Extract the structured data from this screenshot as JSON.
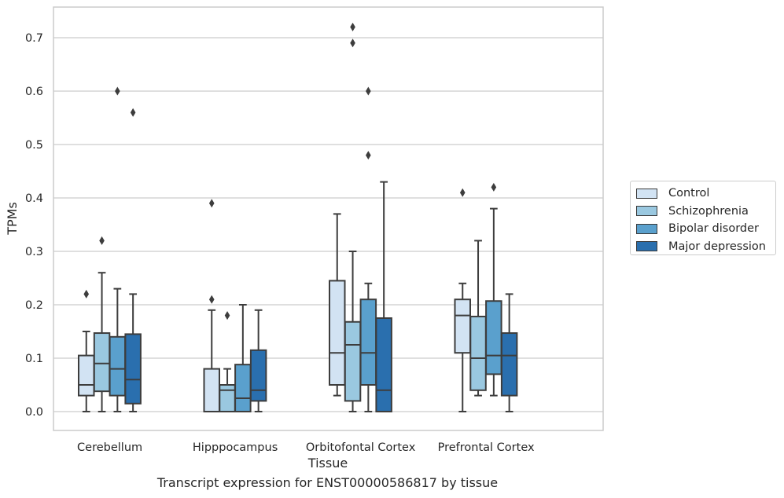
{
  "chart_data": {
    "type": "box",
    "xlabel": "Tissue",
    "ylabel": "TPMs",
    "ylim": [
      -0.035,
      0.76
    ],
    "yticks": [
      0.0,
      0.1,
      0.2,
      0.3,
      0.4,
      0.5,
      0.6,
      0.7
    ],
    "ytick_labels": [
      "0.0",
      "0.1",
      "0.2",
      "0.3",
      "0.4",
      "0.5",
      "0.6",
      "0.7"
    ],
    "grid": "horizontal",
    "legend_position": "right",
    "categories": [
      "Cerebellum",
      "Hipppocampus",
      "Orbitofontal Cortex",
      "Prefrontal Cortex"
    ],
    "series": [
      {
        "name": "Control",
        "color": "#d2e3f3",
        "boxes": [
          {
            "whisker_low": 0.0,
            "q1": 0.03,
            "median": 0.05,
            "q3": 0.105,
            "whisker_high": 0.15,
            "outliers": [
              0.22
            ]
          },
          {
            "whisker_low": 0.0,
            "q1": 0.0,
            "median": 0.0,
            "q3": 0.08,
            "whisker_high": 0.19,
            "outliers": [
              0.21,
              0.39
            ]
          },
          {
            "whisker_low": 0.03,
            "q1": 0.05,
            "median": 0.11,
            "q3": 0.245,
            "whisker_high": 0.37,
            "outliers": []
          },
          {
            "whisker_low": 0.0,
            "q1": 0.11,
            "median": 0.18,
            "q3": 0.21,
            "whisker_high": 0.24,
            "outliers": [
              0.41
            ]
          }
        ]
      },
      {
        "name": "Schizophrenia",
        "color": "#9ac8e0",
        "boxes": [
          {
            "whisker_low": 0.0,
            "q1": 0.038,
            "median": 0.09,
            "q3": 0.147,
            "whisker_high": 0.26,
            "outliers": [
              0.32
            ]
          },
          {
            "whisker_low": 0.0,
            "q1": 0.0,
            "median": 0.04,
            "q3": 0.05,
            "whisker_high": 0.08,
            "outliers": [
              0.18
            ]
          },
          {
            "whisker_low": 0.0,
            "q1": 0.02,
            "median": 0.125,
            "q3": 0.168,
            "whisker_high": 0.3,
            "outliers": [
              0.69,
              0.72
            ]
          },
          {
            "whisker_low": 0.03,
            "q1": 0.04,
            "median": 0.1,
            "q3": 0.178,
            "whisker_high": 0.32,
            "outliers": []
          }
        ]
      },
      {
        "name": "Bipolar disorder",
        "color": "#5aa0cd",
        "boxes": [
          {
            "whisker_low": 0.0,
            "q1": 0.03,
            "median": 0.08,
            "q3": 0.14,
            "whisker_high": 0.23,
            "outliers": [
              0.6
            ]
          },
          {
            "whisker_low": 0.0,
            "q1": 0.0,
            "median": 0.025,
            "q3": 0.088,
            "whisker_high": 0.2,
            "outliers": []
          },
          {
            "whisker_low": 0.0,
            "q1": 0.05,
            "median": 0.11,
            "q3": 0.21,
            "whisker_high": 0.24,
            "outliers": [
              0.48,
              0.6
            ]
          },
          {
            "whisker_low": 0.03,
            "q1": 0.07,
            "median": 0.105,
            "q3": 0.207,
            "whisker_high": 0.38,
            "outliers": [
              0.42
            ]
          }
        ]
      },
      {
        "name": "Major depression",
        "color": "#2a6fae",
        "boxes": [
          {
            "whisker_low": 0.0,
            "q1": 0.015,
            "median": 0.06,
            "q3": 0.145,
            "whisker_high": 0.22,
            "outliers": [
              0.56
            ]
          },
          {
            "whisker_low": 0.0,
            "q1": 0.02,
            "median": 0.04,
            "q3": 0.115,
            "whisker_high": 0.19,
            "outliers": []
          },
          {
            "whisker_low": 0.0,
            "q1": 0.0,
            "median": 0.04,
            "q3": 0.175,
            "whisker_high": 0.43,
            "outliers": []
          },
          {
            "whisker_low": 0.0,
            "q1": 0.03,
            "median": 0.105,
            "q3": 0.147,
            "whisker_high": 0.22,
            "outliers": []
          }
        ]
      }
    ]
  },
  "caption": "Transcript expression for ENST00000586817 by tissue"
}
